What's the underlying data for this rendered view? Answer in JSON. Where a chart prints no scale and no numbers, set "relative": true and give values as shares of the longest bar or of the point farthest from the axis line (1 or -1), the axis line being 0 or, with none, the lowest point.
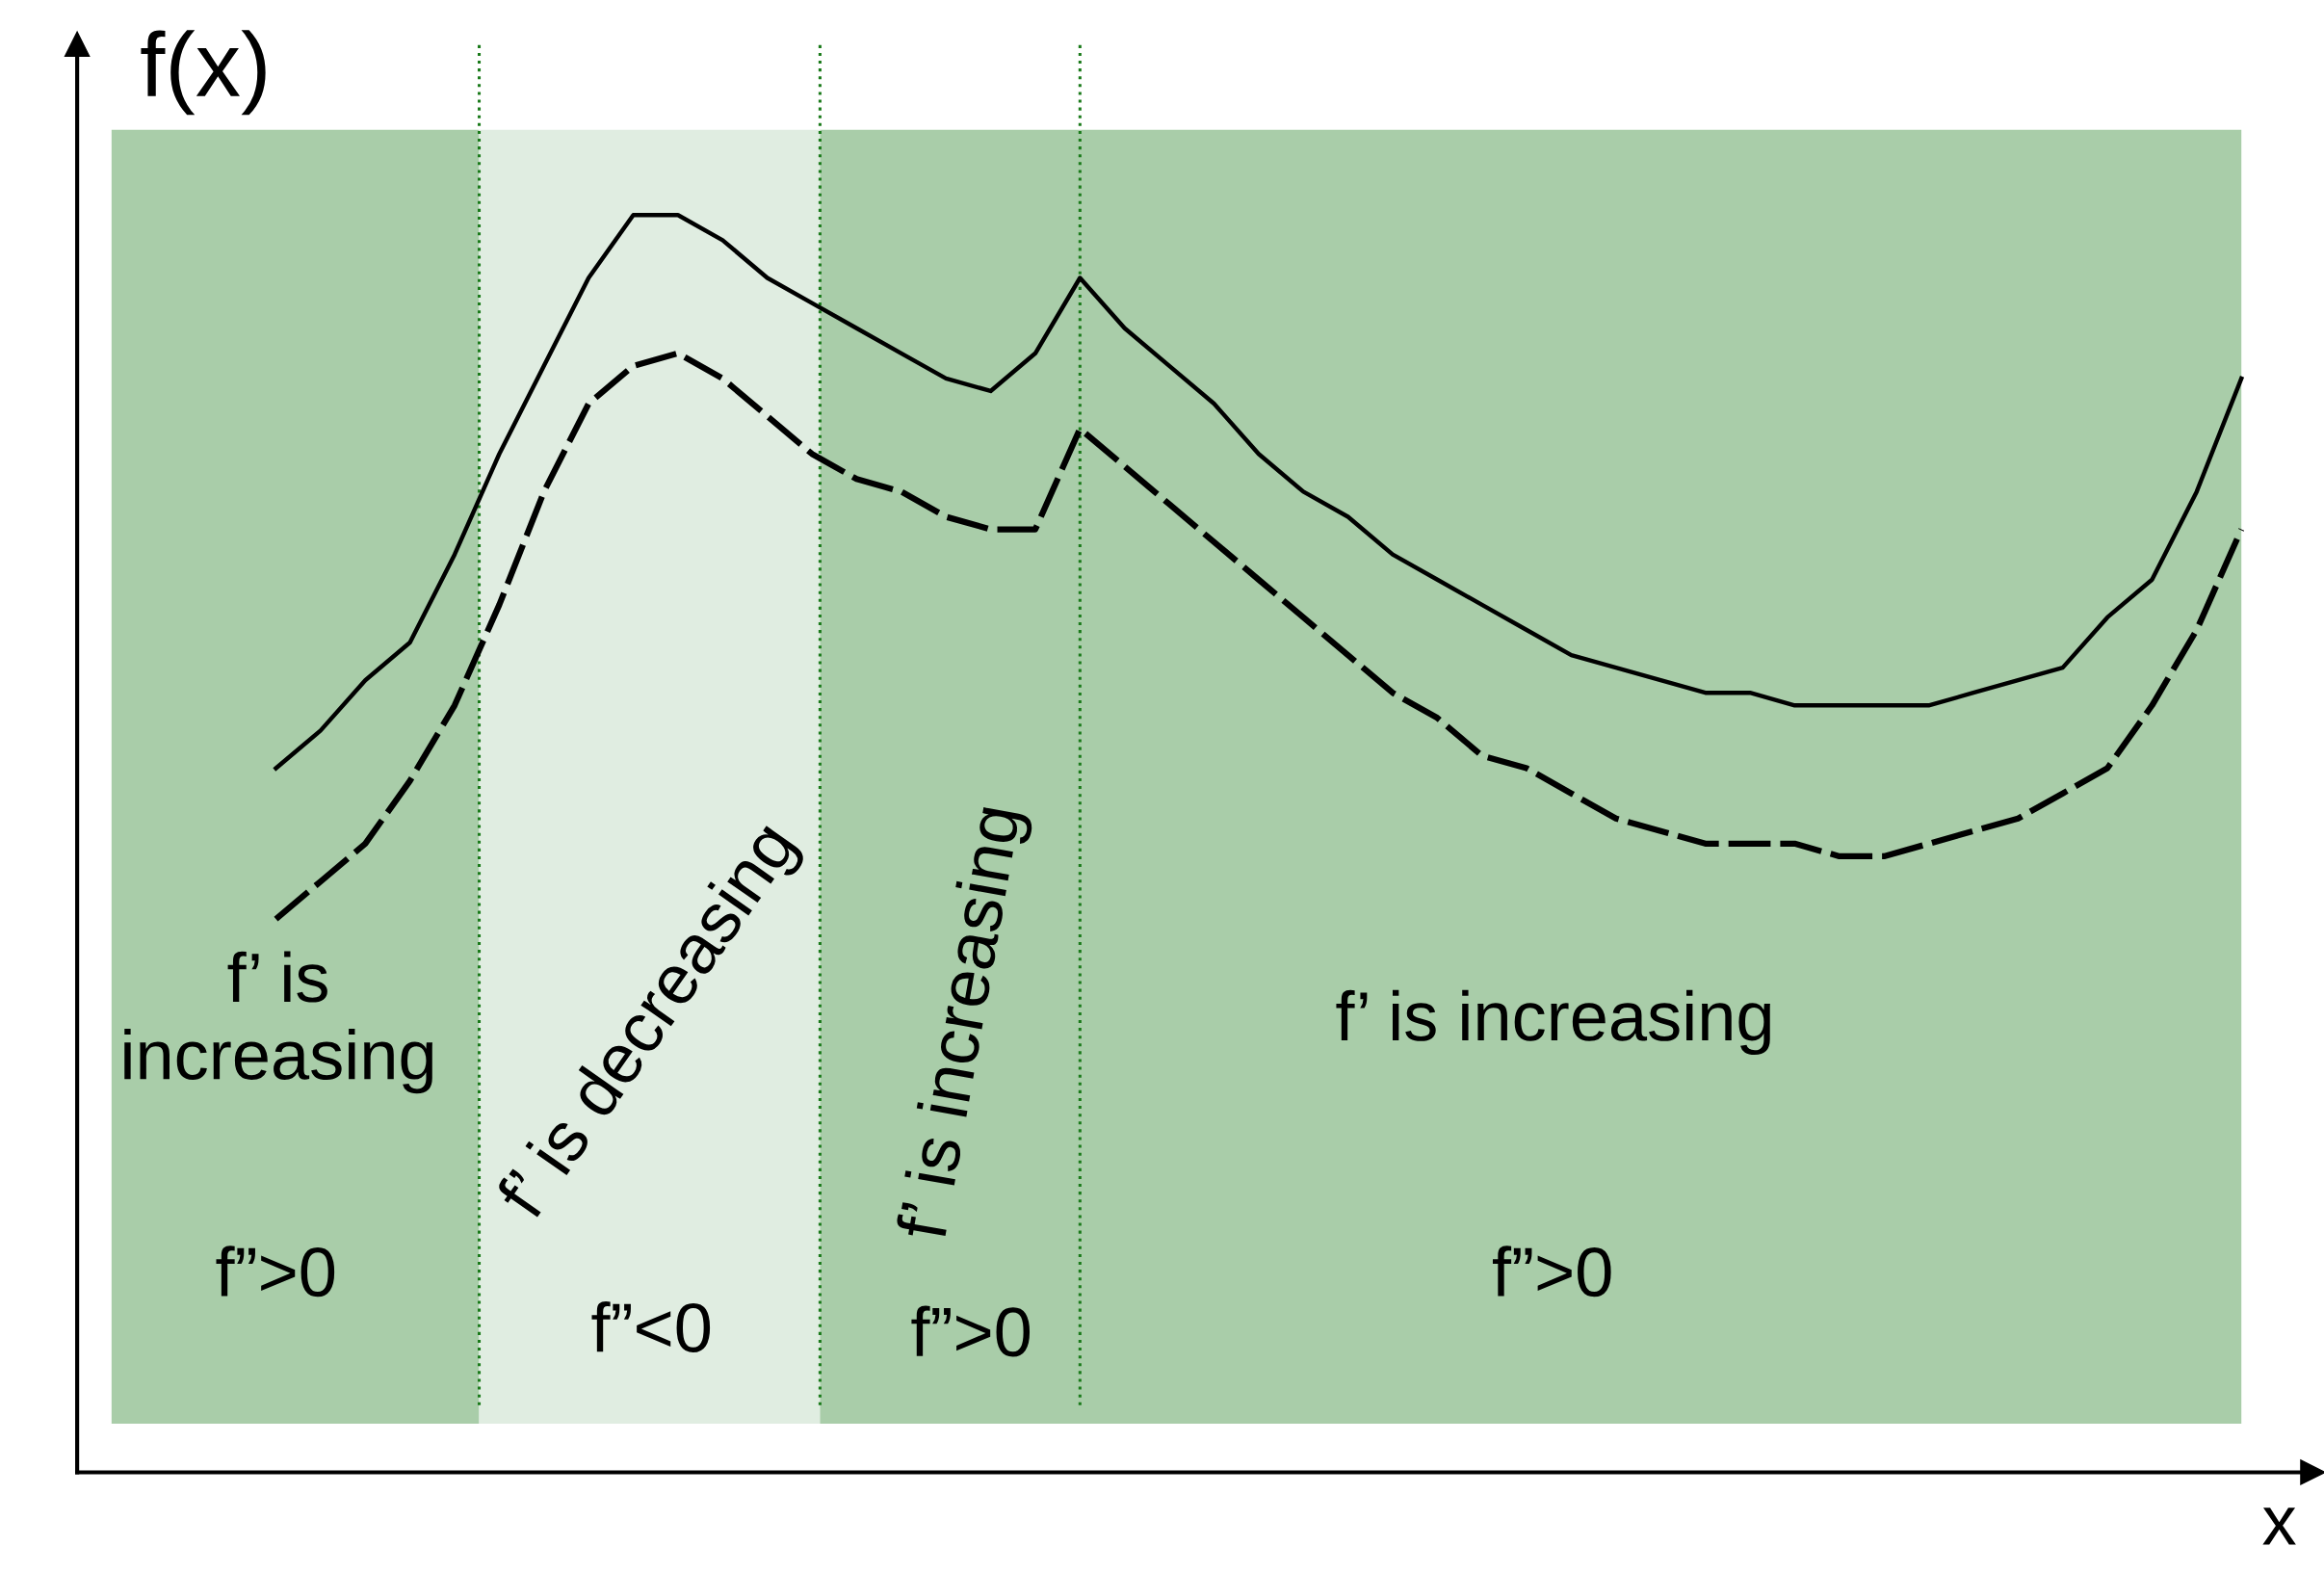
{
  "chart_data": {
    "type": "line",
    "relative": true,
    "xlabel": "x",
    "ylabel": "f(x)",
    "grid": false,
    "legend": false,
    "marker": "none",
    "categories": [
      null,
      null,
      null,
      null,
      null,
      null,
      null,
      null,
      null,
      null,
      null,
      null,
      null,
      null,
      null,
      null,
      null,
      null,
      null,
      null,
      null,
      null,
      null,
      null,
      null,
      null,
      null,
      null,
      null,
      null,
      null,
      null,
      null,
      null,
      null,
      null,
      null,
      null,
      null,
      null,
      null,
      null,
      null,
      null,
      null
    ],
    "series": [
      {
        "color": "#000000",
        "line_style": "solid",
        "values": [
          0.56,
          0.59,
          0.63,
          0.66,
          0.73,
          0.81,
          0.88,
          0.95,
          1.0,
          1.0,
          0.98,
          0.95,
          0.93,
          0.91,
          0.89,
          0.87,
          0.86,
          0.89,
          0.95,
          0.91,
          0.88,
          0.85,
          0.81,
          0.78,
          0.76,
          0.73,
          0.71,
          0.69,
          0.67,
          0.65,
          0.64,
          0.63,
          0.62,
          0.62,
          0.61,
          0.61,
          0.61,
          0.61,
          0.62,
          0.63,
          0.64,
          0.68,
          0.71,
          0.78,
          0.87
        ]
      },
      {
        "color": "#000000",
        "line_style": "dashed",
        "values": [
          0.44,
          0.47,
          0.5,
          0.55,
          0.61,
          0.69,
          0.78,
          0.85,
          0.88,
          0.89,
          0.87,
          0.84,
          0.81,
          0.79,
          0.78,
          0.76,
          0.75,
          0.75,
          0.83,
          0.8,
          0.77,
          0.74,
          0.71,
          0.68,
          0.65,
          0.62,
          0.6,
          0.57,
          0.56,
          0.54,
          0.52,
          0.51,
          0.5,
          0.5,
          0.5,
          0.49,
          0.49,
          0.5,
          0.51,
          0.52,
          0.54,
          0.56,
          0.61,
          0.67,
          0.75
        ]
      }
    ],
    "annotations": [
      "f’ is\nincreasing",
      "f”>0",
      "f’ is decreasing",
      "f”<0",
      "f’ is increasing",
      "f”>0",
      "f’ is increasing",
      "f”>0"
    ]
  }
}
